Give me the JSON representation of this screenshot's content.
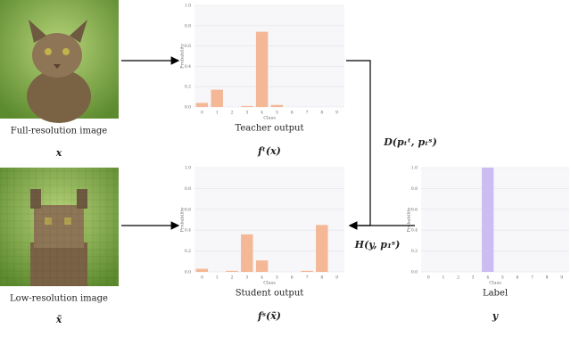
{
  "images": [
    {
      "caption": "Full-resolution image",
      "symbol": "x"
    },
    {
      "caption": "Low-resolution image",
      "symbol": "x̃"
    }
  ],
  "losses": [
    "D(pₜᵗ, pₜˢ)",
    "H(y, p₁ˢ)"
  ],
  "chart_data": [
    {
      "type": "bar",
      "title": "Teacher output",
      "formula": "fᵗ(x)",
      "x_label": "Class",
      "y_label": "Probability",
      "categories": [
        "0",
        "1",
        "2",
        "3",
        "4",
        "5",
        "6",
        "7",
        "8",
        "9"
      ],
      "values": [
        0.04,
        0.17,
        0.0,
        0.01,
        0.74,
        0.02,
        0.0,
        0.0,
        0.0,
        0.0
      ],
      "color": "#f4b896",
      "ylim": [
        0,
        1
      ],
      "yticks": [
        {
          "value": 0,
          "label": "0.0"
        },
        {
          "value": 0.2,
          "label": "0.2"
        },
        {
          "value": 0.4,
          "label": "0.4"
        },
        {
          "value": 0.6,
          "label": "0.6"
        },
        {
          "value": 0.8,
          "label": "0.8"
        },
        {
          "value": 1,
          "label": "1.0"
        }
      ],
      "grid": true
    },
    {
      "type": "bar",
      "title": "Student output",
      "formula": "fˢ(x̃)",
      "x_label": "Class",
      "y_label": "Probability",
      "categories": [
        "0",
        "1",
        "2",
        "3",
        "4",
        "5",
        "6",
        "7",
        "8",
        "9"
      ],
      "values": [
        0.03,
        0.0,
        0.01,
        0.36,
        0.11,
        0.0,
        0.0,
        0.01,
        0.45,
        0.0
      ],
      "color": "#f4b896",
      "ylim": [
        0,
        1
      ],
      "yticks": [
        {
          "value": 0,
          "label": "0.0"
        },
        {
          "value": 0.2,
          "label": "0.2"
        },
        {
          "value": 0.4,
          "label": "0.4"
        },
        {
          "value": 0.6,
          "label": "0.6"
        },
        {
          "value": 0.8,
          "label": "0.8"
        },
        {
          "value": 1,
          "label": "1.0"
        }
      ],
      "grid": true
    },
    {
      "type": "bar",
      "title": "Label",
      "formula": "y",
      "x_label": "Class",
      "y_label": "Probability",
      "categories": [
        "0",
        "1",
        "2",
        "3",
        "4",
        "5",
        "6",
        "7",
        "8",
        "9"
      ],
      "values": [
        0,
        0,
        0,
        0,
        1.0,
        0,
        0,
        0,
        0,
        0
      ],
      "color": "#cdbcf2",
      "ylim": [
        0,
        1
      ],
      "yticks": [
        {
          "value": 0,
          "label": "0.0"
        },
        {
          "value": 0.2,
          "label": "0.2"
        },
        {
          "value": 0.4,
          "label": "0.4"
        },
        {
          "value": 0.6,
          "label": "0.6"
        },
        {
          "value": 0.8,
          "label": "0.8"
        },
        {
          "value": 1,
          "label": "1.0"
        }
      ],
      "grid": true
    }
  ]
}
